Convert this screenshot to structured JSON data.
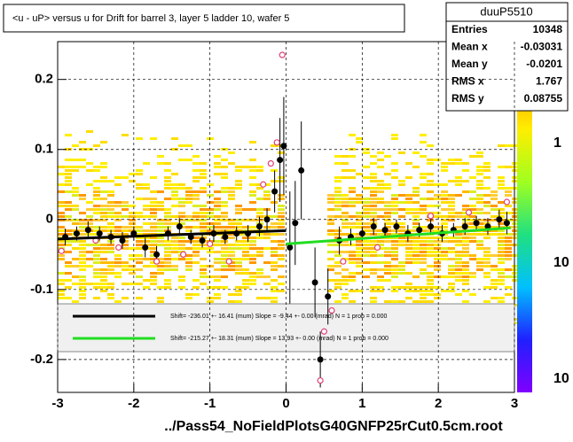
{
  "chart_data": {
    "type": "scatter",
    "title": "<u - uP>       versus   u for Drift for barrel 3, layer 5 ladder 10, wafer 5",
    "footer": "../Pass54_NoFieldPlotsG40GNFP25rCut0.5cm.root",
    "xlim": [
      -3,
      3
    ],
    "ylim": [
      -0.247,
      0.254
    ],
    "xticks": [
      -3,
      -2,
      -1,
      0,
      1,
      2,
      3
    ],
    "yticks": [
      -0.2,
      -0.1,
      0,
      0.1,
      0.2
    ],
    "grid": true,
    "series": [
      {
        "color": "#000000",
        "x": [
          -2.9,
          -2.75,
          -2.6,
          -2.45,
          -2.3,
          -2.15,
          -2.0,
          -1.85,
          -1.7,
          -1.55,
          -1.4,
          -1.25,
          -1.1,
          -0.95,
          -0.8,
          -0.65,
          -0.5,
          -0.35,
          -0.25,
          -0.15,
          -0.08,
          -0.03,
          0.05,
          0.12,
          0.2,
          0.38,
          0.45,
          0.55,
          0.7,
          0.85,
          1.0,
          1.15,
          1.3,
          1.45,
          1.6,
          1.75,
          1.9,
          2.05,
          2.2,
          2.35,
          2.5,
          2.65,
          2.8,
          2.9
        ],
        "values": [
          -0.025,
          -0.02,
          -0.015,
          -0.02,
          -0.025,
          -0.03,
          -0.02,
          -0.04,
          -0.05,
          -0.02,
          -0.01,
          -0.025,
          -0.03,
          -0.02,
          -0.025,
          -0.02,
          -0.02,
          -0.01,
          0.0,
          0.04,
          0.085,
          0.105,
          -0.04,
          -0.005,
          0.07,
          -0.09,
          -0.2,
          -0.11,
          -0.03,
          -0.025,
          -0.02,
          -0.01,
          -0.015,
          -0.01,
          -0.02,
          -0.015,
          -0.01,
          -0.02,
          -0.015,
          -0.01,
          -0.005,
          -0.01,
          0.0,
          -0.005
        ],
        "errors": [
          0.012,
          0.01,
          0.012,
          0.01,
          0.01,
          0.012,
          0.01,
          0.014,
          0.012,
          0.01,
          0.012,
          0.01,
          0.01,
          0.012,
          0.01,
          0.01,
          0.012,
          0.014,
          0.016,
          0.03,
          0.06,
          0.07,
          0.08,
          0.06,
          0.07,
          0.05,
          0.04,
          0.04,
          0.02,
          0.012,
          0.01,
          0.012,
          0.01,
          0.01,
          0.012,
          0.01,
          0.01,
          0.012,
          0.01,
          0.012,
          0.01,
          0.012,
          0.014,
          0.016
        ]
      },
      {
        "color": "#e0407a",
        "x": [
          -2.95,
          -2.5,
          -2.2,
          -1.7,
          -1.35,
          -1.0,
          -0.75,
          -0.3,
          -0.2,
          -0.12,
          -0.05,
          0.45,
          0.5,
          0.6,
          0.75,
          1.2,
          1.9,
          2.4,
          2.9
        ],
        "values": [
          -0.045,
          -0.03,
          -0.04,
          -0.06,
          -0.05,
          -0.035,
          -0.06,
          0.05,
          0.08,
          0.11,
          0.235,
          -0.23,
          -0.16,
          -0.13,
          -0.06,
          -0.04,
          0.005,
          0.01,
          0.025
        ]
      }
    ],
    "fits": [
      {
        "color": "#000000",
        "label": "Shift=  -236.01 +- 16.41 (mum) Slope =   -9.44 +- 0.00 (mrad)  N = 1 prob = 0.000",
        "x": [
          -3,
          0
        ],
        "values": [
          -0.028,
          -0.016
        ]
      },
      {
        "color": "#22dd22",
        "label": "Shift=  -215.27 +- 18.31 (mum) Slope =   13.93 +- 0.00 (mrad)  N = 1 prob = 0.000",
        "x": [
          0,
          2.95
        ],
        "values": [
          -0.035,
          -0.012
        ]
      }
    ],
    "stats": {
      "title": "duuP5510",
      "rows": [
        [
          "Entries",
          "10348"
        ],
        [
          "Mean x",
          "-0.03031"
        ],
        [
          "Mean y",
          "-0.0201"
        ],
        [
          "RMS x",
          "1.767"
        ],
        [
          "RMS y",
          "0.08755"
        ]
      ]
    },
    "colorbar_labels": [
      "1",
      "10",
      "10"
    ]
  }
}
